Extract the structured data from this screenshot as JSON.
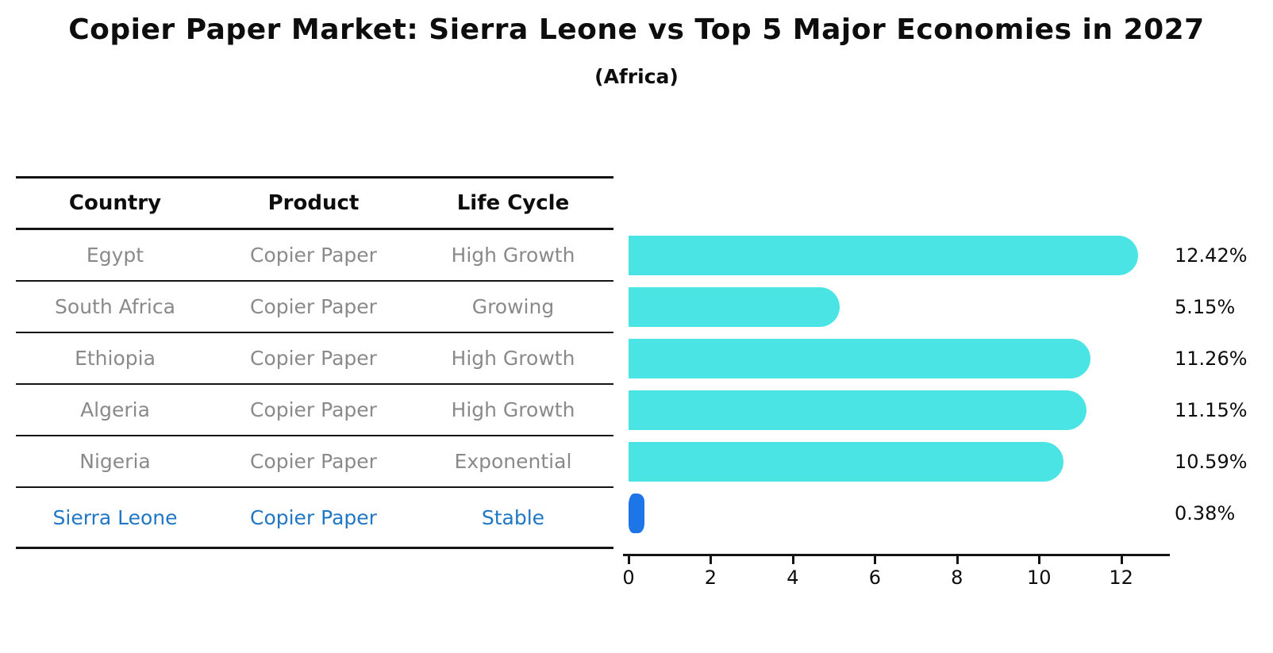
{
  "header": {
    "title": "Copier Paper Market: Sierra Leone vs Top 5 Major Economies in 2027",
    "subtitle": "(Africa)"
  },
  "table": {
    "columns": [
      "Country",
      "Product",
      "Life Cycle"
    ],
    "rows": [
      {
        "country": "Egypt",
        "product": "Copier Paper",
        "life_cycle": "High Growth",
        "highlight": false
      },
      {
        "country": "South Africa",
        "product": "Copier Paper",
        "life_cycle": "Growing",
        "highlight": false
      },
      {
        "country": "Ethiopia",
        "product": "Copier Paper",
        "life_cycle": "High Growth",
        "highlight": false
      },
      {
        "country": "Algeria",
        "product": "Copier Paper",
        "life_cycle": "High Growth",
        "highlight": false
      },
      {
        "country": "Nigeria",
        "product": "Copier Paper",
        "life_cycle": "Exponential",
        "highlight": false
      },
      {
        "country": "Sierra Leone",
        "product": "Copier Paper",
        "life_cycle": "Stable",
        "highlight": true
      }
    ]
  },
  "chart_data": {
    "type": "bar",
    "orientation": "horizontal",
    "title": "Copier Paper Market: Sierra Leone vs Top 5 Major Economies in 2027 (Africa)",
    "categories": [
      "Egypt",
      "South Africa",
      "Ethiopia",
      "Algeria",
      "Nigeria",
      "Sierra Leone"
    ],
    "values": [
      12.42,
      5.15,
      11.26,
      11.15,
      10.59,
      0.38
    ],
    "value_labels": [
      "12.42%",
      "5.15%",
      "11.26%",
      "11.15%",
      "10.59%",
      "0.38%"
    ],
    "unit": "%",
    "x_ticks": [
      0,
      2,
      4,
      6,
      8,
      10,
      12
    ],
    "xlim": [
      0,
      13.34
    ],
    "grid": false,
    "legend": "none",
    "highlight_index": 5
  },
  "colors": {
    "bar": "#4BE4E4",
    "highlight_bar": "#1D76E8",
    "highlight_text": "#2177c4",
    "text": "#0d0d0d",
    "muted_text": "#8a8a8a"
  }
}
